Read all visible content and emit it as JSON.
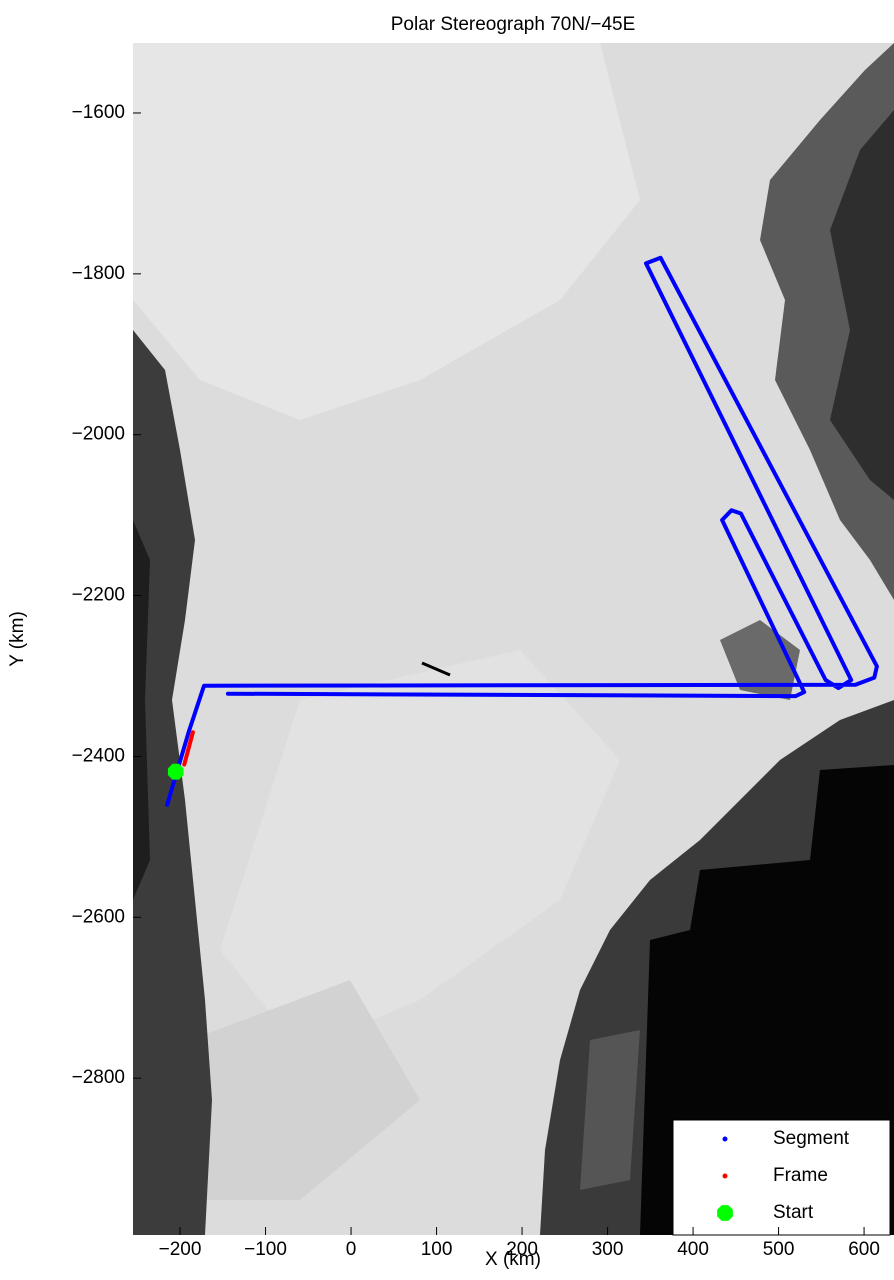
{
  "chart_data": {
    "type": "line",
    "title": "Polar Stereograph 70N/−45E",
    "xlabel": "X (km)",
    "ylabel": "Y (km)",
    "xlim": [
      -255,
      635
    ],
    "ylim": [
      -2995,
      -1513
    ],
    "xticks": [
      {
        "value": -200,
        "label": "−200"
      },
      {
        "value": -100,
        "label": "−100"
      },
      0,
      100,
      200,
      300,
      400,
      500,
      600
    ],
    "yticks": [
      {
        "value": -1600,
        "label": "−1600"
      },
      {
        "value": -1800,
        "label": "−1800"
      },
      {
        "value": -2000,
        "label": "−2000"
      },
      {
        "value": -2200,
        "label": "−2200"
      },
      {
        "value": -2400,
        "label": "−2400"
      },
      {
        "value": -2600,
        "label": "−2600"
      },
      {
        "value": -2800,
        "label": "−2800"
      }
    ],
    "legend": "lower right",
    "series": [
      {
        "name": "Segment",
        "color": "#0000ff",
        "marker": "dot",
        "x": [
          -215,
          -190,
          -172,
          590,
          612,
          615,
          362,
          345,
          585,
          570,
          555,
          456,
          445,
          434,
          530,
          520,
          -144
        ],
        "y": [
          -2460,
          -2370,
          -2312,
          -2311,
          -2302,
          -2288,
          -1780,
          -1787,
          -2305,
          -2315,
          -2305,
          -2098,
          -2094,
          -2106,
          -2320,
          -2325,
          -2322
        ]
      },
      {
        "name": "Frame",
        "color": "#ff0000",
        "marker": "dot",
        "x": [
          -185,
          -195
        ],
        "y": [
          -2370,
          -2410
        ]
      },
      {
        "name": "Start",
        "color": "#00ff00",
        "marker": "octagon",
        "x": [
          -205
        ],
        "y": [
          -2419
        ]
      }
    ]
  }
}
